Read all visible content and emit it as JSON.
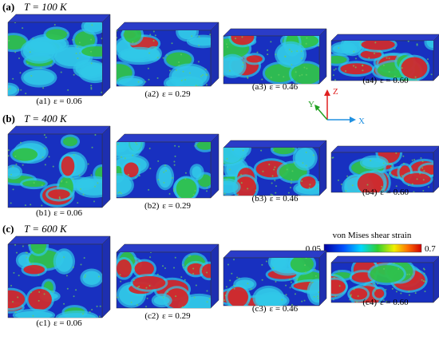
{
  "rows": [
    {
      "label": "(a)",
      "temperature": "T = 100 K",
      "panels": [
        {
          "label": "(a1)",
          "strain": "ε = 0.06"
        },
        {
          "label": "(a2)",
          "strain": "ε = 0.29"
        },
        {
          "label": "(a3)",
          "strain": "ε = 0.46"
        },
        {
          "label": "(a4)",
          "strain": "ε = 0.60"
        }
      ]
    },
    {
      "label": "(b)",
      "temperature": "T = 400 K",
      "panels": [
        {
          "label": "(b1)",
          "strain": "ε = 0.06"
        },
        {
          "label": "(b2)",
          "strain": "ε = 0.29"
        },
        {
          "label": "(b3)",
          "strain": "ε = 0.46"
        },
        {
          "label": "(b4)",
          "strain": "ε = 0.60"
        }
      ]
    },
    {
      "label": "(c)",
      "temperature": "T = 600 K",
      "panels": [
        {
          "label": "(c1)",
          "strain": "ε = 0.06"
        },
        {
          "label": "(c2)",
          "strain": "ε = 0.29"
        },
        {
          "label": "(c3)",
          "strain": "ε = 0.46"
        },
        {
          "label": "(c4)",
          "strain": "ε = 0.60"
        }
      ]
    }
  ],
  "axes": {
    "x": "X",
    "y": "Y",
    "z": "Z"
  },
  "colorbar": {
    "title": "von Mises shear strain",
    "min": "0.05",
    "max": "0.7"
  }
}
